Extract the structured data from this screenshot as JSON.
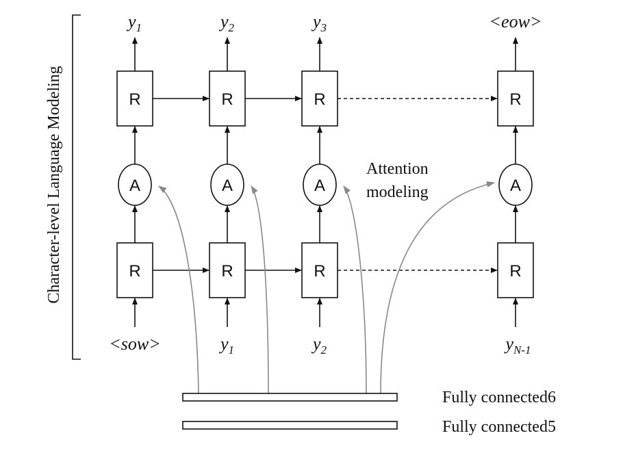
{
  "side_label": "Character-level Language Modeling",
  "attention_label": [
    "Attention",
    "modeling"
  ],
  "rnn_label": "R",
  "attention_node_label": "A",
  "columns": [
    {
      "output_base": "y",
      "output_sub": "1",
      "input_base": "<sow>",
      "input_sub": ""
    },
    {
      "output_base": "y",
      "output_sub": "2",
      "input_base": "y",
      "input_sub": "1"
    },
    {
      "output_base": "y",
      "output_sub": "3",
      "input_base": "y",
      "input_sub": "2"
    },
    {
      "output_base": "<eow>",
      "output_sub": "",
      "input_base": "y",
      "input_sub": "N-1"
    }
  ],
  "fc_layers": [
    "Fully connected6",
    "Fully connected5"
  ],
  "colors": {
    "stroke": "#111111",
    "attention_arrow": "#888888"
  }
}
